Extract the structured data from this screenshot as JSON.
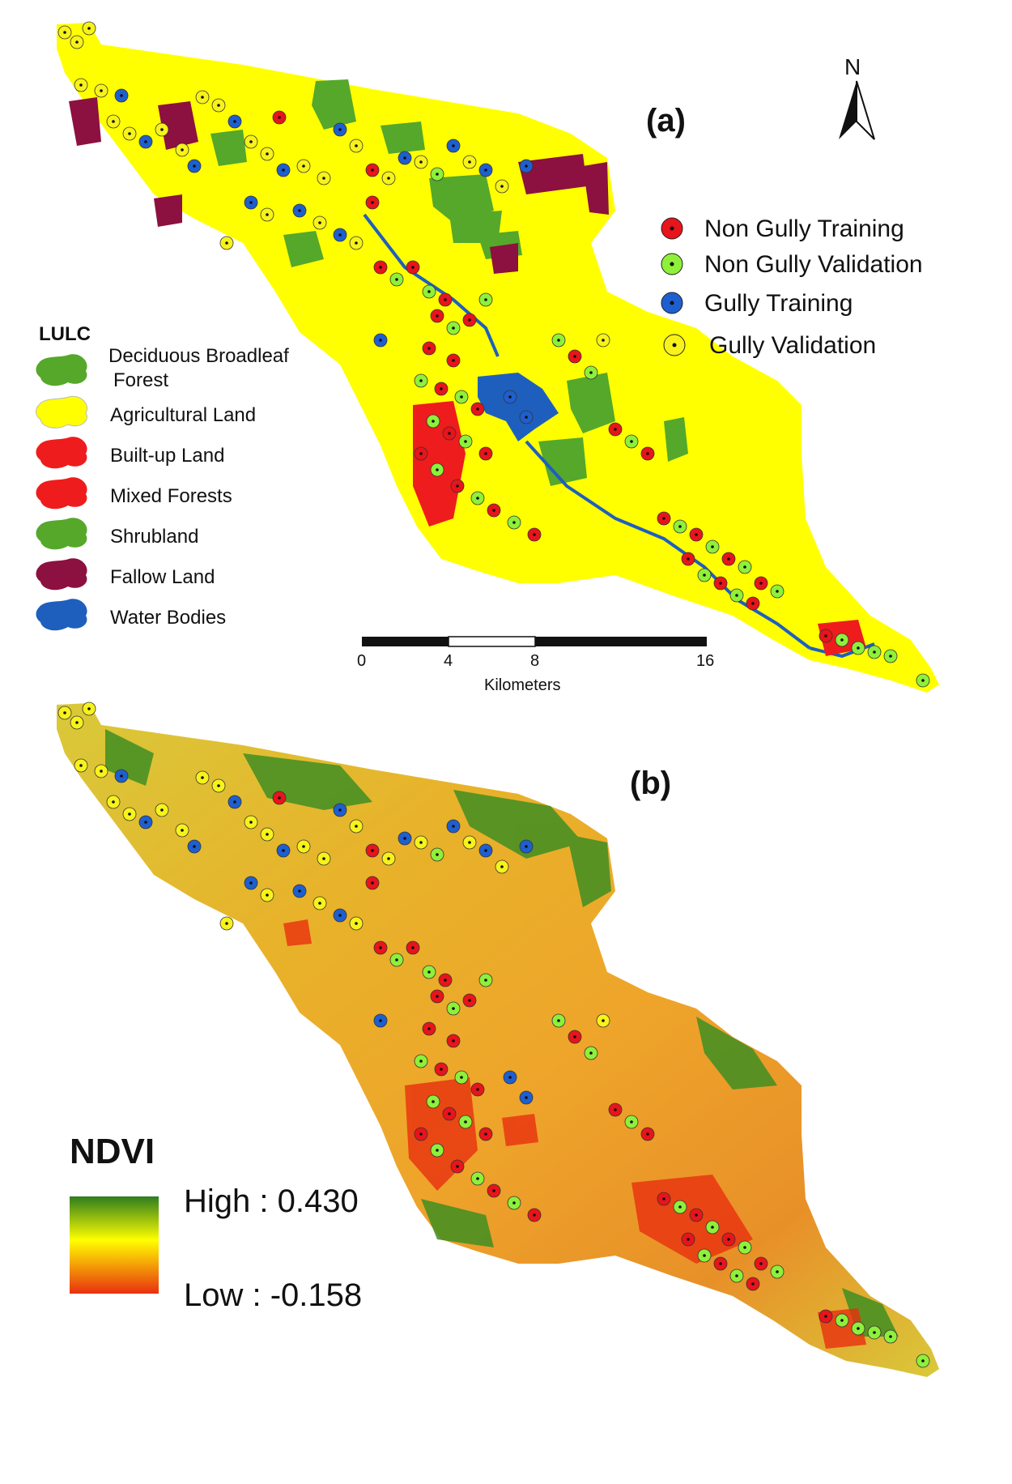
{
  "panel_a": {
    "label": "(a)",
    "north": "N",
    "point_legend": [
      {
        "name": "Non Gully Training",
        "color": "#e8141b"
      },
      {
        "name": "Non Gully Validation",
        "color": "#8ef03a"
      },
      {
        "name": "Gully Training",
        "color": "#1e5fd0"
      },
      {
        "name": "Gully Validation",
        "color": "#f7f21a"
      }
    ],
    "lulc": {
      "title": "LULC",
      "classes": [
        {
          "name": "Deciduous Broadleaf",
          "name2": "Forest",
          "color": "#55a82a"
        },
        {
          "name": "Agricultural Land",
          "color": "#ffff00"
        },
        {
          "name": "Built-up Land",
          "color": "#ee1c1c"
        },
        {
          "name": "Mixed Forests",
          "color": "#ee1c1c"
        },
        {
          "name": "Shrubland",
          "color": "#55a82a"
        },
        {
          "name": "Fallow Land",
          "color": "#8c1040"
        },
        {
          "name": "Water Bodies",
          "color": "#1e5fbe"
        }
      ]
    },
    "scale": {
      "ticks": [
        "0",
        "4",
        "8",
        "16"
      ],
      "unit": "Kilometers"
    }
  },
  "panel_b": {
    "label": "(b)",
    "ndvi": {
      "title": "NDVI",
      "high": "High : 0.430",
      "low": "Low : -0.158",
      "colors": [
        "#2e7d1e",
        "#ffff00",
        "#e8300f"
      ]
    }
  }
}
